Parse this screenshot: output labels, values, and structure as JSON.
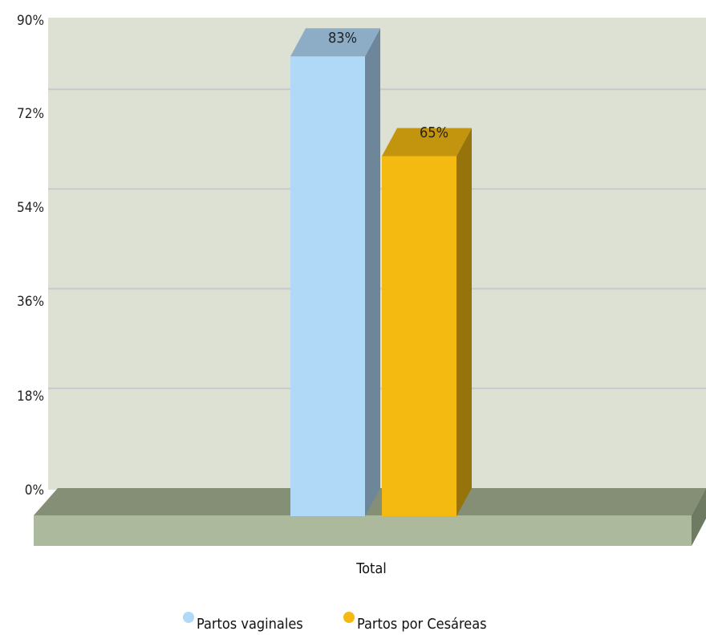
{
  "chart_data": {
    "type": "bar",
    "categories": [
      "Total"
    ],
    "series": [
      {
        "name": "Partos vaginales",
        "values": [
          83
        ],
        "color": "#B0D8F7"
      },
      {
        "name": "Partos por Cesáreas",
        "values": [
          65
        ],
        "color": "#F4BA12"
      }
    ],
    "data_labels": [
      "83%",
      "65%"
    ],
    "y_ticks": [
      "0%",
      "18%",
      "36%",
      "54%",
      "72%",
      "90%"
    ],
    "ylim": [
      0,
      90
    ],
    "grid": true,
    "legend_position": "bottom",
    "plot_background": "#DDE1D4",
    "floor_color": "#ACB99C"
  }
}
